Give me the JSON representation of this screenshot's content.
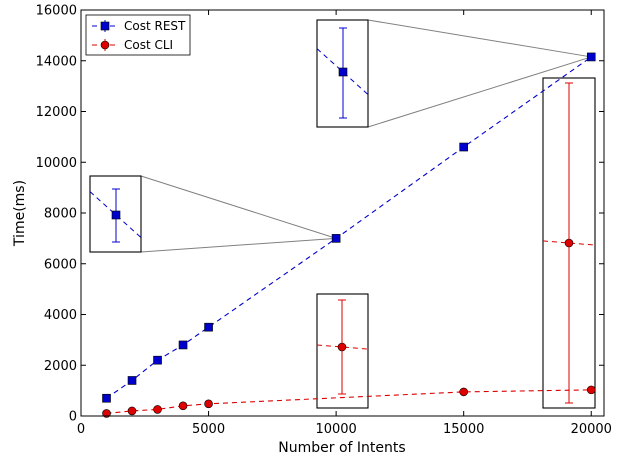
{
  "chart_data": {
    "type": "scatter",
    "xlabel": "Number of Intents",
    "ylabel": "Time(ms)",
    "xlim": [
      0,
      20500
    ],
    "ylim": [
      0,
      16000
    ],
    "x_ticks": [
      0,
      5000,
      10000,
      15000,
      20000
    ],
    "y_ticks": [
      0,
      2000,
      4000,
      6000,
      8000,
      10000,
      12000,
      14000,
      16000
    ],
    "legend_placement": "top-left",
    "grid": false,
    "series": [
      {
        "name": "Cost REST",
        "color": "#0000cc",
        "marker": "square",
        "line_style": "dashed",
        "points": [
          {
            "x": 1000,
            "y": 700
          },
          {
            "x": 2000,
            "y": 1400
          },
          {
            "x": 3000,
            "y": 2200
          },
          {
            "x": 4000,
            "y": 2800
          },
          {
            "x": 5000,
            "y": 3500
          },
          {
            "x": 10000,
            "y": 7000
          },
          {
            "x": 15000,
            "y": 10600
          },
          {
            "x": 20000,
            "y": 14150
          }
        ]
      },
      {
        "name": "Cost CLI",
        "color": "#dd0000",
        "marker": "circle",
        "line_style": "dashed",
        "points": [
          {
            "x": 1000,
            "y": 100
          },
          {
            "x": 2000,
            "y": 200
          },
          {
            "x": 3000,
            "y": 260
          },
          {
            "x": 4000,
            "y": 400
          },
          {
            "x": 5000,
            "y": 480
          },
          {
            "x": 15000,
            "y": 950
          },
          {
            "x": 20000,
            "y": 1030
          }
        ]
      }
    ],
    "zoom_insets": [
      {
        "series": "Cost REST",
        "target_x": 10000,
        "target_y": 7000
      },
      {
        "series": "Cost REST",
        "target_x": 20000,
        "target_y": 14150
      },
      {
        "series": "Cost CLI",
        "target_x": 10000,
        "target_y": 650
      },
      {
        "series": "Cost CLI",
        "target_x": 20000,
        "target_y": 1030
      }
    ]
  }
}
